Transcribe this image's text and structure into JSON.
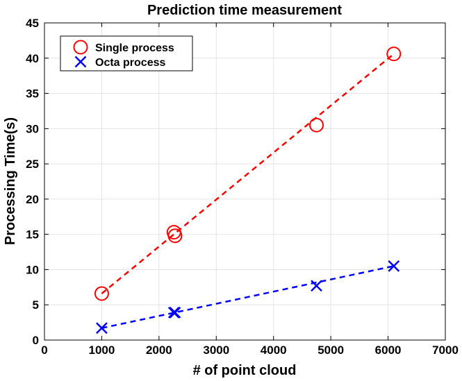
{
  "chart_data": {
    "type": "scatter",
    "title": "Prediction time measurement",
    "xlabel": "# of point cloud",
    "ylabel": "Processing Time(s)",
    "xlim": [
      0,
      7000
    ],
    "ylim": [
      0,
      45
    ],
    "xticks": [
      0,
      1000,
      2000,
      3000,
      4000,
      5000,
      6000,
      7000
    ],
    "yticks": [
      0,
      5,
      10,
      15,
      20,
      25,
      30,
      35,
      40,
      45
    ],
    "grid": true,
    "legend_position": "top-left",
    "series": [
      {
        "name": "Single process",
        "marker": "circle",
        "color": "#ff0000",
        "line_style": "dashed",
        "x": [
          1000,
          2260,
          2280,
          4750,
          6100
        ],
        "y": [
          6.6,
          15.3,
          14.8,
          30.5,
          40.6
        ]
      },
      {
        "name": "Octa process",
        "marker": "x",
        "color": "#0000ff",
        "line_style": "dashed",
        "x": [
          1000,
          2260,
          2280,
          4750,
          6100
        ],
        "y": [
          1.7,
          3.9,
          3.9,
          7.7,
          10.5
        ]
      }
    ]
  }
}
